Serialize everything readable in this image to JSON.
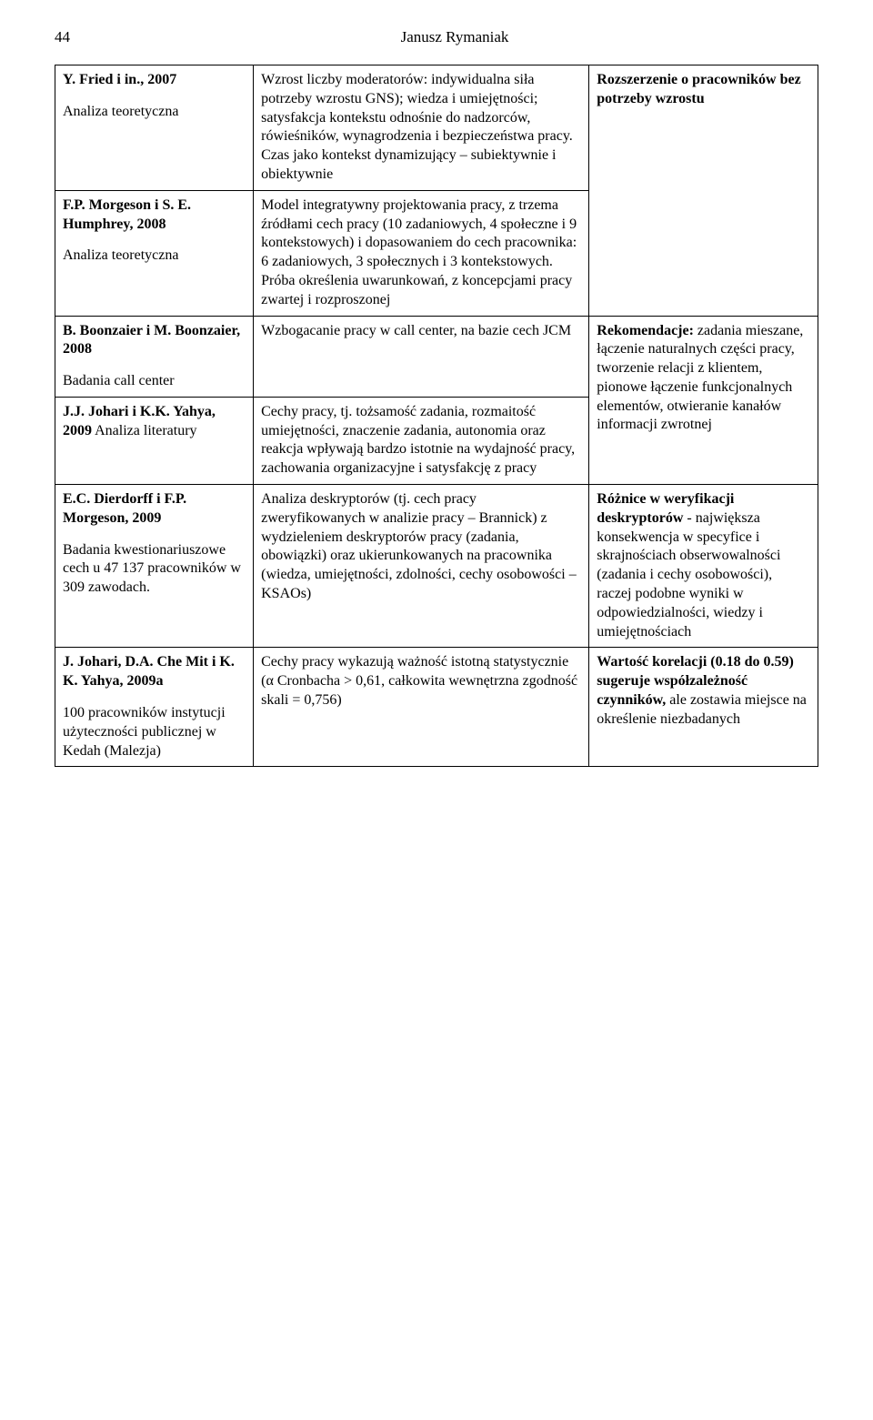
{
  "header": {
    "page_number": "44",
    "author": "Janusz Rymaniak"
  },
  "rows": [
    {
      "col1": {
        "author": "Y. Fried i in., 2007",
        "study": "Analiza teoretyczna"
      },
      "col2": "Wzrost liczby moderatorów: indywidualna siła potrzeby wzrostu GNS); wiedza i umiejętności; satysfakcja kontekstu odnośnie do nadzorców, rówieśników, wynagrodzenia i bezpieczeństwa pracy. Czas jako kontekst dynamizujący – subiektywnie i obiektywnie",
      "col3_label": "Rozszerzenie o pracowników bez potrzeby wzrostu",
      "col3_rest": ""
    },
    {
      "col1": {
        "author": "F.P. Morgeson i S. E. Humphrey, 2008",
        "study": "Analiza teoretyczna"
      },
      "col2": "Model integratywny projektowania pracy, z trzema źródłami cech pracy (10 zadaniowych, 4 społeczne i 9 kontekstowych) i dopasowaniem do cech pracownika: 6 zadaniowych, 3 społecznych i 3 kontekstowych. Próba określenia uwarunkowań, z koncepcjami pracy zwartej i rozproszonej"
    },
    {
      "col1": {
        "author": "B. Boonzaier i  M. Boonzaier, 2008",
        "study": "Badania call center"
      },
      "col2": "Wzbogacanie pracy w call center, na bazie cech JCM",
      "col3_label": "Rekomendacje:",
      "col3_rest": " zadania mieszane, łączenie naturalnych części pracy, tworzenie relacji z klientem, pionowe łączenie funkcjonalnych elementów, otwieranie kanałów informacji zwrotnej"
    },
    {
      "col1": {
        "author": "J.J. Johari i K.K. Yahya, 2009",
        "study": "Analiza literatury"
      },
      "col2": "Cechy pracy, tj. tożsamość zadania, rozmaitość umiejętności, znaczenie zadania, autonomia oraz reakcja wpływają bardzo istotnie na wydajność pracy, zachowania organizacyjne i satysfakcję z pracy"
    },
    {
      "col1": {
        "author": "E.C. Dierdorff i F.P. Morgeson, 2009",
        "study": "Badania kwestionariuszowe cech u 47 137 pracowników w 309  zawodach."
      },
      "col2": "Analiza deskryptorów (tj. cech pracy zweryfikowanych w analizie pracy – Brannick)  z wydzieleniem deskryptorów pracy (zadania, obowiązki) oraz ukierunkowanych na pracownika (wiedza, umiejętności, zdolności, cechy osobowości – KSAOs)",
      "col3_label": "Różnice w weryfikacji deskryptorów",
      "col3_rest": " - największa konsekwencja w specyfice  i skrajnościach obserwowalności (zadania i cechy osobowości), raczej podobne wyniki w odpowiedzialności, wiedzy i umiejętnościach"
    },
    {
      "col1": {
        "author": "J. Johari, D.A. Che Mit i K. K. Yahya, 2009a",
        "study": "100 pracowników instytucji użyteczności publicznej w Kedah (Malezja)"
      },
      "col2": "Cechy pracy wykazują  ważność istotną statystycznie (α Cronbacha > 0,61, całkowita wewnętrzna zgodność skali = 0,756)",
      "col3_label": "Wartość korelacji (0.18 do 0.59) sugeruje współzależność czynników,",
      "col3_rest": " ale zostawia miejsce na określenie niezbadanych"
    }
  ]
}
